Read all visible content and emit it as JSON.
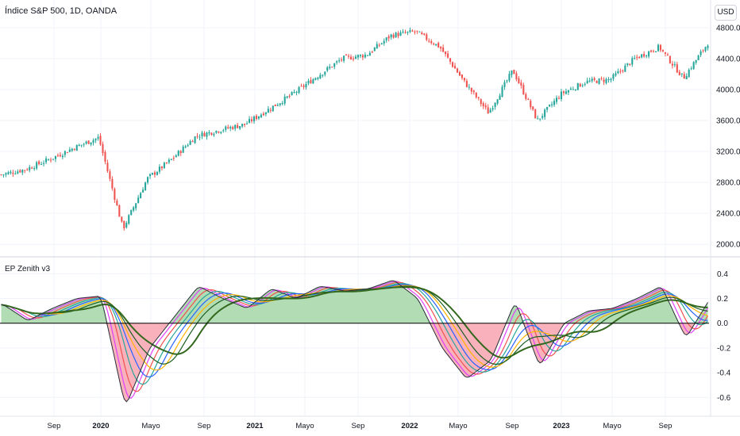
{
  "header": {
    "title": "Índice S&P 500, 1D, OANDA",
    "currency_button": "USD"
  },
  "indicator": {
    "title": "EP Zenith v3"
  },
  "price_axis": {
    "ticks": [
      "4800.0",
      "4400.0",
      "4000.0",
      "3600.0",
      "3200.0",
      "2800.0",
      "2400.0",
      "2000.0"
    ],
    "values": [
      4800,
      4400,
      4000,
      3600,
      3200,
      2800,
      2400,
      2000
    ]
  },
  "osc_axis": {
    "ticks": [
      "0.4",
      "0.2",
      "0.0",
      "-0.2",
      "-0.4",
      "-0.6"
    ],
    "values": [
      0.4,
      0.2,
      0.0,
      -0.2,
      -0.4,
      -0.6
    ]
  },
  "time_axis": [
    {
      "label": "Sep",
      "major": false
    },
    {
      "label": "2020",
      "major": true
    },
    {
      "label": "Mayo",
      "major": false
    },
    {
      "label": "Sep",
      "major": false
    },
    {
      "label": "2021",
      "major": true
    },
    {
      "label": "Mayo",
      "major": false
    },
    {
      "label": "Sep",
      "major": false
    },
    {
      "label": "2022",
      "major": true
    },
    {
      "label": "Mayo",
      "major": false
    },
    {
      "label": "Sep",
      "major": false
    },
    {
      "label": "2023",
      "major": true
    },
    {
      "label": "Mayo",
      "major": false
    },
    {
      "label": "Sep",
      "major": false
    }
  ],
  "colors": {
    "up": "#26a69a",
    "down": "#ef5350",
    "grid": "#f0f3fa",
    "fill_pos": "#a5d6a7",
    "fill_neg": "#f8a5b0",
    "osc_main": "#2a2e39",
    "osc_lines": [
      "#e040fb",
      "#ef5350",
      "#26a69a",
      "#2962ff",
      "#ffb300",
      "#1b5e20"
    ]
  },
  "chart_data": [
    {
      "type": "candlestick",
      "title": "Índice S&P 500, 1D, OANDA",
      "ylim": [
        1900,
        4850
      ],
      "x": [
        "2019-07",
        "2019-09",
        "2019-11",
        "2020-01",
        "2020-02",
        "2020-03",
        "2020-04",
        "2020-06",
        "2020-08",
        "2020-09",
        "2020-11",
        "2021-01",
        "2021-03",
        "2021-05",
        "2021-07",
        "2021-09",
        "2021-11",
        "2022-01",
        "2022-03",
        "2022-05",
        "2022-06",
        "2022-08",
        "2022-10",
        "2022-12",
        "2023-02",
        "2023-04",
        "2023-06",
        "2023-08",
        "2023-10",
        "2023-12"
      ],
      "close": [
        2900,
        2970,
        3100,
        3250,
        3380,
        2200,
        2850,
        3100,
        3400,
        3480,
        3550,
        3750,
        3950,
        4180,
        4400,
        4450,
        4700,
        4750,
        4550,
        4100,
        3700,
        4250,
        3600,
        3950,
        4100,
        4130,
        4400,
        4550,
        4150,
        4600
      ]
    },
    {
      "type": "area",
      "title": "EP Zenith v3",
      "ylim": [
        -0.72,
        0.46
      ],
      "x": [
        "2019-07",
        "2019-09",
        "2019-11",
        "2020-01",
        "2020-02",
        "2020-03",
        "2020-04",
        "2020-06",
        "2020-08",
        "2020-09",
        "2020-11",
        "2021-01",
        "2021-03",
        "2021-05",
        "2021-07",
        "2021-09",
        "2021-11",
        "2022-01",
        "2022-03",
        "2022-05",
        "2022-06",
        "2022-08",
        "2022-10",
        "2022-12",
        "2023-02",
        "2023-04",
        "2023-06",
        "2023-08",
        "2023-10",
        "2023-12"
      ],
      "series": [
        {
          "values": [
            0.15,
            0.02,
            0.12,
            0.2,
            0.22,
            -0.68,
            -0.2,
            0.05,
            0.3,
            0.2,
            0.12,
            0.28,
            0.2,
            0.3,
            0.26,
            0.28,
            0.35,
            0.2,
            -0.2,
            -0.45,
            -0.3,
            0.18,
            -0.35,
            0.0,
            0.1,
            0.12,
            0.2,
            0.3,
            -0.12,
            0.2
          ]
        }
      ]
    }
  ]
}
